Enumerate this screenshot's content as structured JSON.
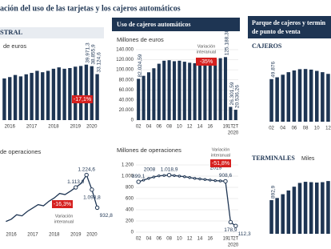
{
  "header": {
    "title": "ación del uso de las tarjetas y los cajeros automáticos",
    "panel_1": "STRAL",
    "panel_2": "Uso de cajeros automáticos",
    "panel_3": [
      "Parque de cajeros y termin",
      "de punto de venta"
    ]
  },
  "chart_data": [
    {
      "type": "bar",
      "title": "de euros",
      "color": "#1e3553",
      "categories": [
        null,
        "2016",
        null,
        null,
        null,
        "2017",
        null,
        null,
        null,
        "2018",
        null,
        null,
        null,
        "2019",
        null,
        null,
        "2020",
        null
      ],
      "values": [
        30000,
        31000,
        32500,
        31500,
        33000,
        34000,
        35500,
        34500,
        35500,
        37000,
        38000,
        37000,
        37500,
        38500,
        39000,
        39971.3,
        38855.9,
        33124.6
      ],
      "value_labels": [
        null,
        null,
        null,
        null,
        null,
        null,
        null,
        null,
        null,
        null,
        null,
        null,
        null,
        null,
        null,
        "39.971,3",
        "38.855,9",
        "33.124,6"
      ],
      "ylim": [
        0,
        45000
      ],
      "annotations": [
        "-17,1%"
      ]
    },
    {
      "type": "line",
      "title": "de operaciones",
      "color": "#1e3553",
      "categories": [
        null,
        "2016",
        null,
        null,
        null,
        "2017",
        null,
        null,
        null,
        "2018",
        null,
        null,
        null,
        "2019",
        null,
        null,
        "2020",
        null
      ],
      "values": [
        810,
        830,
        870,
        860,
        900,
        930,
        960,
        950,
        990,
        1020,
        1060,
        1050,
        1080,
        1113.9,
        1150,
        1224.6,
        1093.8,
        932.8
      ],
      "value_labels": [
        null,
        null,
        null,
        null,
        null,
        null,
        null,
        null,
        null,
        null,
        null,
        null,
        null,
        "1.113,9",
        null,
        "1.224,6",
        "1.093,8",
        "932,8"
      ],
      "ylim": [
        750,
        1300
      ],
      "annotations": [
        "-16,3%",
        "Variación",
        "interanual"
      ]
    },
    {
      "type": "bar",
      "title": "Millones de euros",
      "color": "#1e3553",
      "grid": true,
      "x_sublabel": "2020",
      "categories": [
        "02",
        null,
        "04",
        null,
        "06",
        null,
        "08",
        null,
        "10",
        null,
        "12",
        null,
        "14",
        null,
        "16",
        null,
        null,
        "19",
        "1T",
        "2T"
      ],
      "values": [
        82024.59,
        88000,
        95000,
        103000,
        112000,
        118000,
        119000,
        117000,
        118000,
        116000,
        114000,
        113000,
        114000,
        116000,
        119000,
        121000,
        123000,
        125188.38,
        26301.59,
        20536.26
      ],
      "value_labels": [
        "82.024,59",
        null,
        null,
        null,
        null,
        null,
        null,
        null,
        null,
        null,
        null,
        null,
        null,
        null,
        null,
        null,
        null,
        "125.188,38",
        "26.301,59",
        "20.536,26"
      ],
      "ylim": [
        0,
        140000
      ],
      "yticks": [
        0,
        {
          "value": 20000,
          "label": "20.000"
        },
        {
          "value": 40000,
          "label": "40.000"
        },
        {
          "value": 60000,
          "label": "60.000"
        },
        {
          "value": 80000,
          "label": "80.000"
        },
        {
          "value": 100000,
          "label": "100.000"
        },
        {
          "value": 120000,
          "label": "120.000"
        },
        {
          "value": 140000,
          "label": "140.000"
        }
      ],
      "annotations": [
        "Variación",
        "interanual",
        "-35%"
      ]
    },
    {
      "type": "line",
      "title": "Millones de operaciones",
      "color": "#1e3553",
      "grid": true,
      "x_sublabel": "2020",
      "categories": [
        "02",
        null,
        "04",
        null,
        "06",
        null,
        "08",
        null,
        "10",
        null,
        "12",
        null,
        "14",
        null,
        "16",
        null,
        null,
        "19",
        "1T",
        "2T"
      ],
      "values": [
        899.1,
        930,
        960,
        985,
        1005,
        1012,
        1018.9,
        1010,
        1000,
        990,
        975,
        960,
        950,
        940,
        930,
        920,
        915,
        908.6,
        178.9,
        112.3
      ],
      "value_labels": [
        "899,1",
        null,
        null,
        null,
        null,
        null,
        "1.018,9",
        null,
        null,
        null,
        null,
        null,
        null,
        null,
        null,
        null,
        null,
        "908,6",
        "178,9",
        "112,3"
      ],
      "ylim": [
        0,
        1200
      ],
      "yticks": [
        0,
        200,
        400,
        600,
        800,
        {
          "value": 1000,
          "label": "1.000"
        },
        {
          "value": 1200,
          "label": "1.200"
        }
      ],
      "annotations": [
        "2008",
        "2019",
        "Variación",
        "interanual",
        "-51,8%"
      ]
    },
    {
      "type": "bar",
      "title": "CAJEROS",
      "color": "#1e3553",
      "categories": [
        "02",
        null,
        "04",
        null,
        "06",
        null,
        "08",
        null,
        "10",
        null,
        "12"
      ],
      "values": [
        49876,
        52000,
        55000,
        58000,
        60000,
        61500,
        61700,
        61000,
        59500,
        58000,
        56000
      ],
      "value_labels": [
        "49.876",
        null,
        null,
        null,
        null,
        null,
        null,
        null,
        null,
        null,
        null
      ],
      "ylim": [
        0,
        75000
      ]
    },
    {
      "type": "bar",
      "title": "TERMINALES",
      "subtitle": "Miles",
      "color": "#1e3553",
      "values": [
        892.9,
        950,
        1050,
        1150,
        1250,
        1350,
        1380,
        1370,
        1360,
        1370,
        1400
      ],
      "value_labels": [
        "892,9",
        null,
        null,
        null,
        null,
        null,
        null,
        null,
        null,
        null,
        null
      ],
      "ylim": [
        0,
        1700
      ]
    }
  ]
}
